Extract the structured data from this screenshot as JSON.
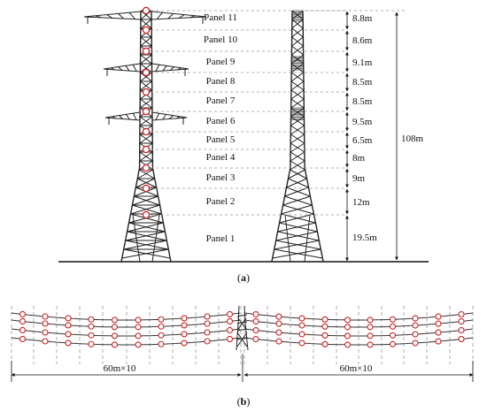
{
  "figure_a": {
    "caption_open": "(",
    "caption_letter": "a",
    "caption_close": ")",
    "panels": [
      {
        "name": "Panel 11",
        "height": "8.8m"
      },
      {
        "name": "Panel 10",
        "height": "8.6m"
      },
      {
        "name": "Panel 9",
        "height": "9.1m"
      },
      {
        "name": "Panel 8",
        "height": "8.5m"
      },
      {
        "name": "Panel 7",
        "height": "8.5m"
      },
      {
        "name": "Panel 6",
        "height": "9.5m"
      },
      {
        "name": "Panel 5",
        "height": "6.5m"
      },
      {
        "name": "Panel 4",
        "height": "8m"
      },
      {
        "name": "Panel 3",
        "height": "9m"
      },
      {
        "name": "Panel 2",
        "height": "12m"
      },
      {
        "name": "Panel 1",
        "height": "19.5m"
      }
    ],
    "total_height": "108m"
  },
  "figure_b": {
    "caption_open": "(",
    "caption_letter": "b",
    "caption_close": ")",
    "span_left": "60m×10",
    "span_right": "60m×10"
  },
  "colors": {
    "line": "#222222",
    "marker": "#cc2222",
    "dashed": "#9a9a9a"
  }
}
